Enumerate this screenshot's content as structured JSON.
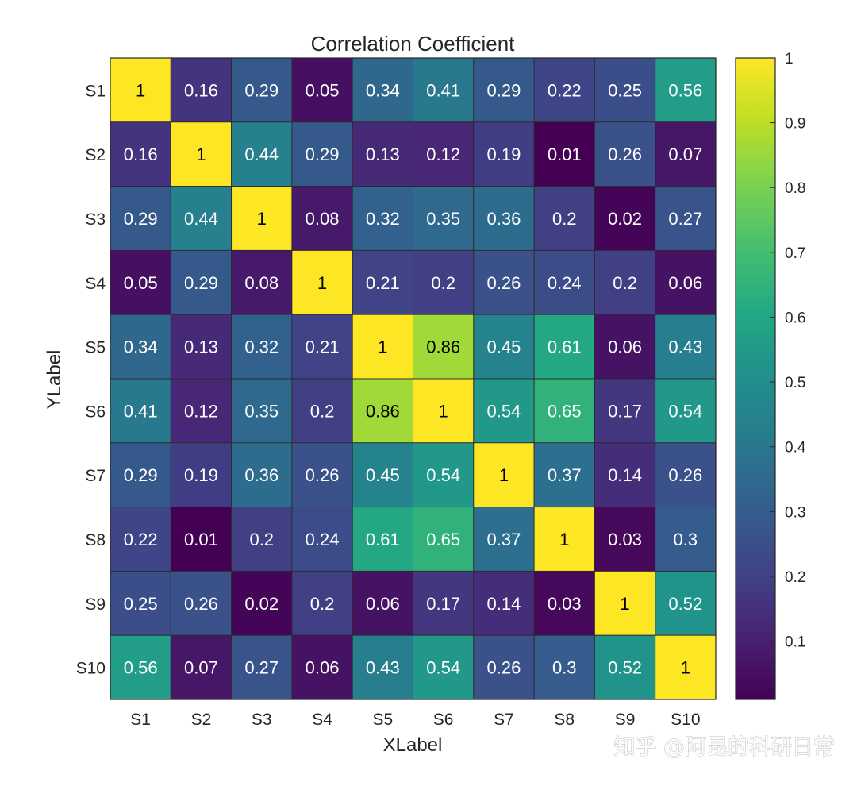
{
  "chart_data": {
    "type": "heatmap",
    "title": "Correlation Coefficient",
    "xlabel": "XLabel",
    "ylabel": "YLabel",
    "x_categories": [
      "S1",
      "S2",
      "S3",
      "S4",
      "S5",
      "S6",
      "S7",
      "S8",
      "S9",
      "S10"
    ],
    "y_categories": [
      "S1",
      "S2",
      "S3",
      "S4",
      "S5",
      "S6",
      "S7",
      "S8",
      "S9",
      "S10"
    ],
    "values": [
      [
        1,
        0.16,
        0.29,
        0.05,
        0.34,
        0.41,
        0.29,
        0.22,
        0.25,
        0.56
      ],
      [
        0.16,
        1,
        0.44,
        0.29,
        0.13,
        0.12,
        0.19,
        0.01,
        0.26,
        0.07
      ],
      [
        0.29,
        0.44,
        1,
        0.08,
        0.32,
        0.35,
        0.36,
        0.2,
        0.02,
        0.27
      ],
      [
        0.05,
        0.29,
        0.08,
        1,
        0.21,
        0.2,
        0.26,
        0.24,
        0.2,
        0.06
      ],
      [
        0.34,
        0.13,
        0.32,
        0.21,
        1,
        0.86,
        0.45,
        0.61,
        0.06,
        0.43
      ],
      [
        0.41,
        0.12,
        0.35,
        0.2,
        0.86,
        1,
        0.54,
        0.65,
        0.17,
        0.54
      ],
      [
        0.29,
        0.19,
        0.36,
        0.26,
        0.45,
        0.54,
        1,
        0.37,
        0.14,
        0.26
      ],
      [
        0.22,
        0.01,
        0.2,
        0.24,
        0.61,
        0.65,
        0.37,
        1,
        0.03,
        0.3
      ],
      [
        0.25,
        0.26,
        0.02,
        0.2,
        0.06,
        0.17,
        0.14,
        0.03,
        1,
        0.52
      ],
      [
        0.56,
        0.07,
        0.27,
        0.06,
        0.43,
        0.54,
        0.26,
        0.3,
        0.52,
        1
      ]
    ],
    "colormap": "viridis",
    "colorbar": {
      "range": [
        0.01,
        1
      ],
      "ticks": [
        0.1,
        0.2,
        0.3,
        0.4,
        0.5,
        0.6,
        0.7,
        0.8,
        0.9,
        1
      ],
      "tick_labels": [
        "0.1",
        "0.2",
        "0.3",
        "0.4",
        "0.5",
        "0.6",
        "0.7",
        "0.8",
        "0.9",
        "1"
      ],
      "placement": "right"
    },
    "grid": true
  },
  "watermark": "知乎 @阿昆的科研日常"
}
